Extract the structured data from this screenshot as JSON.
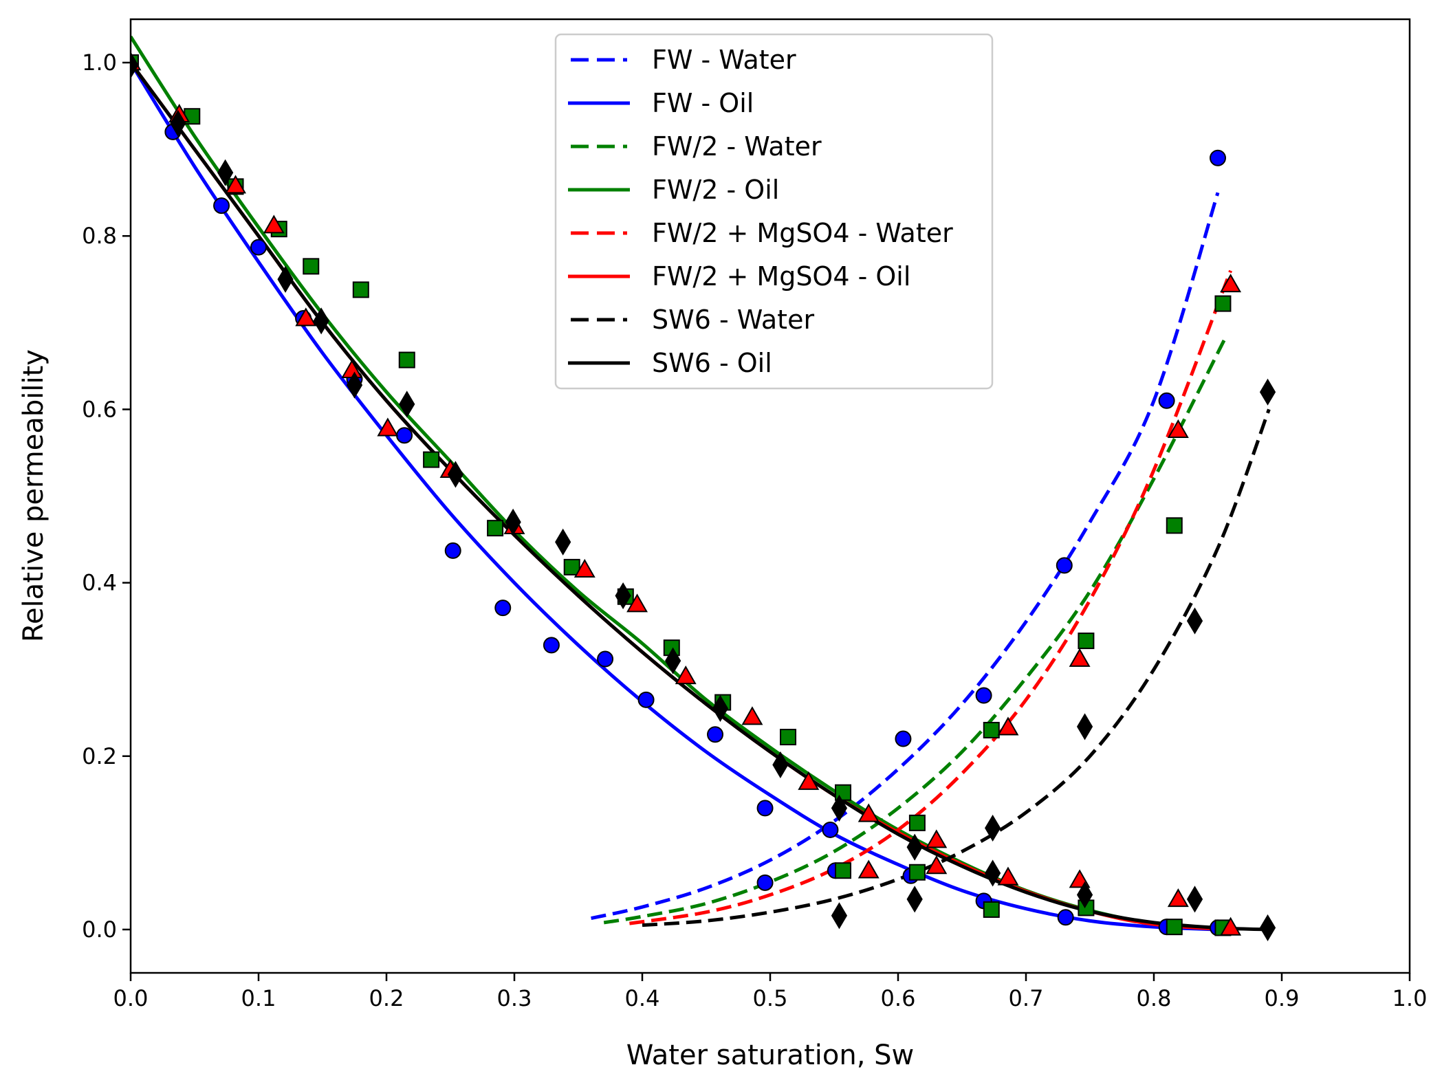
{
  "chart_data": {
    "type": "line",
    "title": "",
    "xlabel": "Water saturation, Sw",
    "ylabel": "Relative permeability",
    "xlim": [
      0.0,
      1.0
    ],
    "ylim": [
      -0.05,
      1.05
    ],
    "xticks": [
      "0.0",
      "0.1",
      "0.2",
      "0.3",
      "0.4",
      "0.5",
      "0.6",
      "0.7",
      "0.8",
      "0.9",
      "1.0"
    ],
    "yticks": [
      "0.0",
      "0.2",
      "0.4",
      "0.6",
      "0.8",
      "1.0"
    ],
    "grid": false,
    "legend_position": "top-center",
    "legend": [
      {
        "label": "FW - Water",
        "color": "#0000ff",
        "style": "dashed"
      },
      {
        "label": "FW - Oil",
        "color": "#0000ff",
        "style": "solid"
      },
      {
        "label": "FW/2 - Water",
        "color": "#008000",
        "style": "dashed"
      },
      {
        "label": "FW/2 - Oil",
        "color": "#008000",
        "style": "solid"
      },
      {
        "label": "FW/2 + MgSO4 - Water",
        "color": "#ff0000",
        "style": "dashed"
      },
      {
        "label": "FW/2 + MgSO4 - Oil",
        "color": "#ff0000",
        "style": "solid"
      },
      {
        "label": "SW6 - Water",
        "color": "#000000",
        "style": "dashed"
      },
      {
        "label": "SW6 - Oil",
        "color": "#000000",
        "style": "solid"
      }
    ],
    "series": [
      {
        "name": "FW - Water",
        "color": "#0000ff",
        "style": "dashed",
        "x": [
          0.36,
          0.4,
          0.45,
          0.5,
          0.55,
          0.6,
          0.65,
          0.7,
          0.75,
          0.8,
          0.85
        ],
        "y": [
          0.013,
          0.026,
          0.048,
          0.08,
          0.125,
          0.185,
          0.26,
          0.355,
          0.47,
          0.61,
          0.85
        ]
      },
      {
        "name": "FW - Oil",
        "color": "#0000ff",
        "style": "solid",
        "x": [
          0.0,
          0.05,
          0.1,
          0.15,
          0.2,
          0.25,
          0.3,
          0.35,
          0.4,
          0.45,
          0.5,
          0.55,
          0.6,
          0.65,
          0.7,
          0.75,
          0.8,
          0.85
        ],
        "y": [
          1.0,
          0.88,
          0.77,
          0.665,
          0.57,
          0.48,
          0.4,
          0.328,
          0.263,
          0.205,
          0.155,
          0.11,
          0.075,
          0.045,
          0.024,
          0.01,
          0.003,
          0.0
        ]
      },
      {
        "name": "FW/2 - Water",
        "color": "#008000",
        "style": "dashed",
        "x": [
          0.37,
          0.4,
          0.45,
          0.5,
          0.55,
          0.6,
          0.65,
          0.7,
          0.75,
          0.8,
          0.855
        ],
        "y": [
          0.008,
          0.015,
          0.03,
          0.055,
          0.09,
          0.14,
          0.205,
          0.29,
          0.39,
          0.52,
          0.68
        ]
      },
      {
        "name": "FW/2 - Oil",
        "color": "#008000",
        "style": "solid",
        "x": [
          0.0,
          0.05,
          0.1,
          0.15,
          0.2,
          0.25,
          0.3,
          0.35,
          0.4,
          0.45,
          0.5,
          0.55,
          0.6,
          0.65,
          0.7,
          0.75,
          0.8,
          0.855
        ],
        "y": [
          1.03,
          0.915,
          0.81,
          0.71,
          0.62,
          0.54,
          0.46,
          0.39,
          0.33,
          0.265,
          0.21,
          0.16,
          0.115,
          0.077,
          0.045,
          0.022,
          0.007,
          0.0
        ]
      },
      {
        "name": "FW/2 + MgSO4 - Water",
        "color": "#ff0000",
        "style": "dashed",
        "x": [
          0.39,
          0.45,
          0.5,
          0.55,
          0.6,
          0.65,
          0.7,
          0.75,
          0.8,
          0.86
        ],
        "y": [
          0.007,
          0.02,
          0.04,
          0.07,
          0.115,
          0.18,
          0.265,
          0.38,
          0.53,
          0.76
        ]
      },
      {
        "name": "FW/2 + MgSO4 - Oil",
        "color": "#ff0000",
        "style": "solid",
        "x": [
          0.0,
          0.05,
          0.1,
          0.15,
          0.2,
          0.25,
          0.3,
          0.35,
          0.4,
          0.45,
          0.5,
          0.55,
          0.6,
          0.65,
          0.7,
          0.75,
          0.8,
          0.86
        ],
        "y": [
          1.0,
          0.9,
          0.8,
          0.7,
          0.61,
          0.53,
          0.455,
          0.385,
          0.32,
          0.26,
          0.205,
          0.155,
          0.112,
          0.075,
          0.044,
          0.021,
          0.006,
          0.0
        ]
      },
      {
        "name": "SW6 - Water",
        "color": "#000000",
        "style": "dashed",
        "x": [
          0.4,
          0.45,
          0.5,
          0.55,
          0.6,
          0.65,
          0.7,
          0.75,
          0.8,
          0.85,
          0.89
        ],
        "y": [
          0.005,
          0.01,
          0.02,
          0.035,
          0.058,
          0.09,
          0.135,
          0.2,
          0.3,
          0.44,
          0.6
        ]
      },
      {
        "name": "SW6 - Oil",
        "color": "#000000",
        "style": "solid",
        "x": [
          0.0,
          0.05,
          0.1,
          0.15,
          0.2,
          0.25,
          0.3,
          0.35,
          0.4,
          0.45,
          0.5,
          0.55,
          0.6,
          0.65,
          0.7,
          0.75,
          0.8,
          0.85,
          0.89
        ],
        "y": [
          1.0,
          0.9,
          0.8,
          0.7,
          0.61,
          0.53,
          0.455,
          0.385,
          0.32,
          0.26,
          0.205,
          0.155,
          0.11,
          0.073,
          0.043,
          0.021,
          0.008,
          0.002,
          0.0
        ]
      }
    ],
    "scatter": [
      {
        "name": "FW - Oil data",
        "marker": "circle",
        "color": "#0000ff",
        "x": [
          0.0,
          0.033,
          0.071,
          0.1,
          0.135,
          0.175,
          0.214,
          0.252,
          0.291,
          0.329,
          0.371,
          0.403,
          0.457,
          0.496,
          0.547,
          0.551,
          0.61,
          0.667,
          0.731,
          0.81,
          0.85
        ],
        "y": [
          1.0,
          0.92,
          0.835,
          0.787,
          0.705,
          0.635,
          0.57,
          0.437,
          0.371,
          0.328,
          0.312,
          0.265,
          0.225,
          0.14,
          0.115,
          0.068,
          0.062,
          0.033,
          0.014,
          0.003,
          0.002
        ]
      },
      {
        "name": "FW - Water data",
        "marker": "circle",
        "color": "#0000ff",
        "x": [
          0.496,
          0.604,
          0.667,
          0.73,
          0.81,
          0.85
        ],
        "y": [
          0.054,
          0.22,
          0.27,
          0.42,
          0.61,
          0.89
        ]
      },
      {
        "name": "FW/2 - Oil data",
        "marker": "square",
        "color": "#008000",
        "x": [
          0.0,
          0.048,
          0.082,
          0.116,
          0.141,
          0.18,
          0.216,
          0.235,
          0.285,
          0.345,
          0.387,
          0.423,
          0.463,
          0.514,
          0.557,
          0.615,
          0.673,
          0.747,
          0.816,
          0.854
        ],
        "y": [
          1.0,
          0.938,
          0.857,
          0.808,
          0.765,
          0.738,
          0.657,
          0.542,
          0.463,
          0.418,
          0.384,
          0.325,
          0.262,
          0.222,
          0.158,
          0.123,
          0.023,
          0.025,
          0.003,
          0.002
        ]
      },
      {
        "name": "FW/2 - Water data",
        "marker": "square",
        "color": "#008000",
        "x": [
          0.557,
          0.615,
          0.673,
          0.747,
          0.816,
          0.854
        ],
        "y": [
          0.068,
          0.066,
          0.23,
          0.333,
          0.466,
          0.722
        ]
      },
      {
        "name": "FW/2 + MgSO4 - Oil data",
        "marker": "triangle",
        "color": "#ff0000",
        "x": [
          0.0,
          0.038,
          0.082,
          0.112,
          0.137,
          0.173,
          0.201,
          0.25,
          0.3,
          0.355,
          0.396,
          0.434,
          0.486,
          0.53,
          0.577,
          0.63,
          0.686,
          0.742,
          0.819,
          0.86
        ],
        "y": [
          1.0,
          0.94,
          0.858,
          0.812,
          0.705,
          0.645,
          0.578,
          0.53,
          0.465,
          0.415,
          0.375,
          0.292,
          0.245,
          0.17,
          0.133,
          0.103,
          0.06,
          0.057,
          0.035,
          0.002
        ]
      },
      {
        "name": "FW/2 + MgSO4 - Water data",
        "marker": "triangle",
        "color": "#ff0000",
        "x": [
          0.577,
          0.63,
          0.686,
          0.742,
          0.819,
          0.86
        ],
        "y": [
          0.068,
          0.073,
          0.233,
          0.312,
          0.576,
          0.744
        ]
      },
      {
        "name": "SW6 - Oil data",
        "marker": "diamond",
        "color": "#000000",
        "x": [
          0.0,
          0.037,
          0.074,
          0.121,
          0.149,
          0.175,
          0.216,
          0.254,
          0.299,
          0.338,
          0.385,
          0.424,
          0.461,
          0.508,
          0.554,
          0.613,
          0.674,
          0.746,
          0.832,
          0.889
        ],
        "y": [
          0.997,
          0.93,
          0.873,
          0.75,
          0.702,
          0.628,
          0.606,
          0.525,
          0.47,
          0.447,
          0.385,
          0.31,
          0.255,
          0.19,
          0.14,
          0.095,
          0.065,
          0.04,
          0.035,
          0.002
        ]
      },
      {
        "name": "SW6 - Water data",
        "marker": "diamond",
        "color": "#000000",
        "x": [
          0.554,
          0.613,
          0.674,
          0.746,
          0.832,
          0.889
        ],
        "y": [
          0.016,
          0.035,
          0.117,
          0.234,
          0.356,
          0.62
        ]
      }
    ]
  }
}
